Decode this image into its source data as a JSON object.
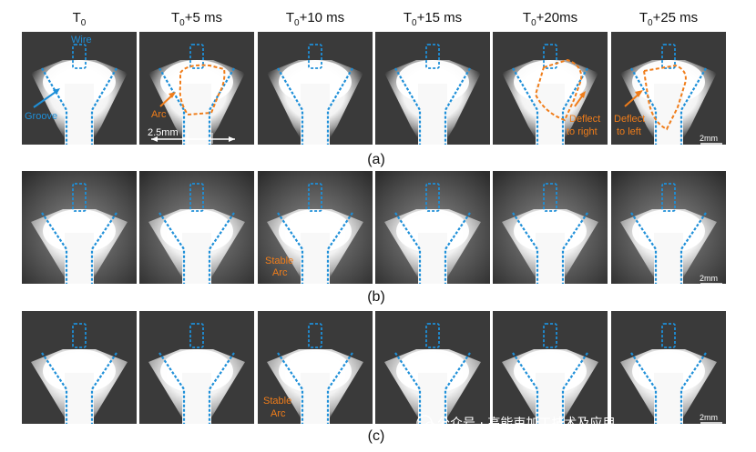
{
  "columns": [
    {
      "base": "T",
      "sub": "0",
      "suffix": ""
    },
    {
      "base": "T",
      "sub": "0",
      "suffix": "+5 ms"
    },
    {
      "base": "T",
      "sub": "0",
      "suffix": "+10 ms"
    },
    {
      "base": "T",
      "sub": "0",
      "suffix": "+15 ms"
    },
    {
      "base": "T",
      "sub": "0",
      "suffix": "+20ms"
    },
    {
      "base": "T",
      "sub": "0",
      "suffix": "+25 ms"
    }
  ],
  "rows": [
    {
      "label": "(a)"
    },
    {
      "label": "(b)"
    },
    {
      "label": "(c)"
    }
  ],
  "annotations": {
    "wire": "Wire",
    "groove": "Groove",
    "arc": "Arc",
    "width": "2.5mm",
    "deflect_right_1": "Deflect",
    "deflect_right_2": "to right",
    "deflect_left_1": "Deflect",
    "deflect_left_2": "to left",
    "stable_b_1": "Stable",
    "stable_b_2": "Arc",
    "stable_c_1": "Stable",
    "stable_c_2": "Arc"
  },
  "scale_bar": "2mm",
  "watermark": "公众号 · 高能束加工技术及应用",
  "colors": {
    "groove_outline": "#1e8fd8",
    "arc_outline": "#f07d1a",
    "frame_bg": "#3a3a3a"
  }
}
